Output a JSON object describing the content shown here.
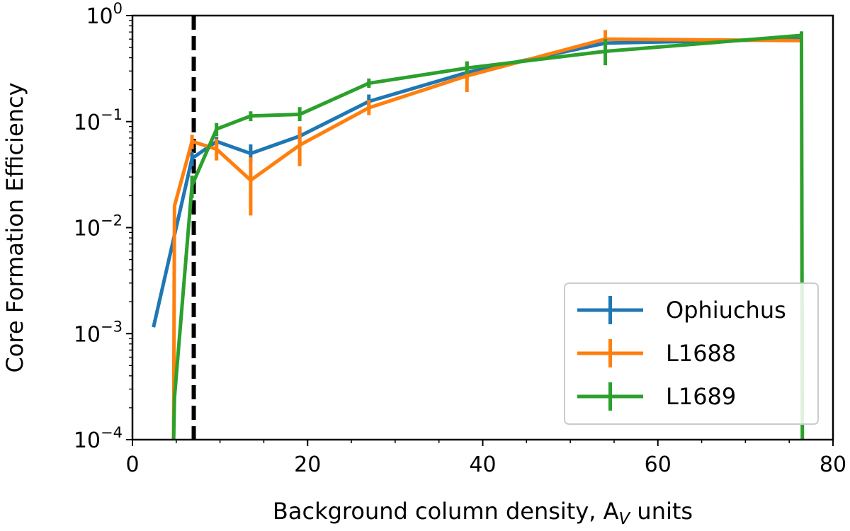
{
  "chart_data": {
    "type": "line",
    "title": "",
    "xlabel": "Background column density, A",
    "xlabel_sub": "V",
    "xlabel_suffix": " units",
    "ylabel": "Core Formation Efficiency",
    "xlim": [
      0,
      80
    ],
    "ylim": [
      0.0001,
      1
    ],
    "yscale": "log",
    "xticks": [
      0,
      20,
      40,
      60,
      80
    ],
    "xtick_labels": [
      "0",
      "20",
      "40",
      "60",
      "80"
    ],
    "yticks": [
      0.0001,
      0.001,
      0.01,
      0.1,
      1
    ],
    "ytick_labels": [
      {
        "base": "10",
        "exp": "−4"
      },
      {
        "base": "10",
        "exp": "−3"
      },
      {
        "base": "10",
        "exp": "−2"
      },
      {
        "base": "10",
        "exp": "−1"
      },
      {
        "base": "10",
        "exp": "0"
      }
    ],
    "grid": false,
    "legend_position": "lower-right",
    "threshold_line": {
      "x": 7,
      "style": "dashed",
      "color": "#000000"
    },
    "series": [
      {
        "name": "Ophiuchus",
        "color": "#1f77b4",
        "x": [
          2.4,
          4.8,
          6.8,
          9.6,
          13.5,
          19.1,
          27.0,
          38.2,
          54.0,
          76.4
        ],
        "y": [
          0.00115,
          0.0085,
          0.045,
          0.065,
          0.05,
          0.073,
          0.155,
          0.29,
          0.55,
          0.6
        ],
        "err_low": [
          null,
          null,
          0.007,
          0.007,
          0.009,
          0.012,
          0.02,
          0.04,
          0.05,
          0.03
        ],
        "err_high": [
          null,
          null,
          0.007,
          0.007,
          0.011,
          0.016,
          0.025,
          0.05,
          0.06,
          0.03
        ]
      },
      {
        "name": "L1688",
        "color": "#ff7f0e",
        "x": [
          4.7,
          4.8,
          6.8,
          9.6,
          13.5,
          19.1,
          27.0,
          38.2,
          54.0,
          76.4
        ],
        "y": [
          0.0001,
          0.016,
          0.065,
          0.055,
          0.028,
          0.06,
          0.135,
          0.27,
          0.6,
          0.58
        ],
        "err_low": [
          null,
          null,
          0.01,
          0.012,
          0.015,
          0.022,
          0.02,
          0.08,
          0.1,
          0.04
        ],
        "err_high": [
          null,
          null,
          0.01,
          0.014,
          0.018,
          0.03,
          0.025,
          0.1,
          0.13,
          0.05
        ]
      },
      {
        "name": "L1689",
        "color": "#2ca02c",
        "x": [
          4.7,
          4.8,
          6.8,
          9.6,
          13.5,
          19.1,
          27.0,
          38.2,
          54.0,
          76.4,
          76.5
        ],
        "y": [
          0.0001,
          0.00025,
          0.025,
          0.085,
          0.113,
          0.117,
          0.23,
          0.32,
          0.46,
          0.65,
          0.0001
        ],
        "err_low": [
          null,
          null,
          0.006,
          0.012,
          0.012,
          0.016,
          0.022,
          0.04,
          0.12,
          0.06,
          null
        ],
        "err_high": [
          null,
          null,
          0.006,
          0.012,
          0.012,
          0.02,
          0.025,
          0.05,
          0.14,
          0.06,
          null
        ]
      }
    ]
  }
}
